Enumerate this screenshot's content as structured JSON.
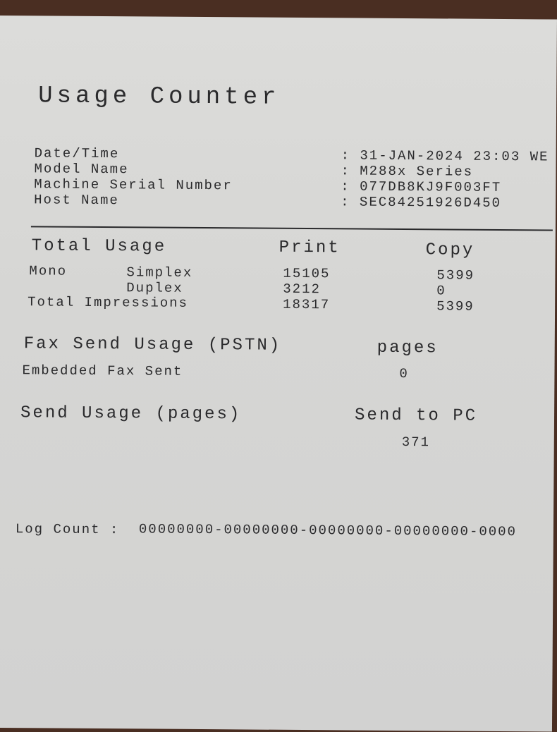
{
  "title": "Usage Counter",
  "info": [
    {
      "label": "Date/Time",
      "value": ": 31-JAN-2024 23:03 WE"
    },
    {
      "label": "Model Name",
      "value": ": M288x Series"
    },
    {
      "label": "Machine Serial Number",
      "value": ": 077DB8KJ9F003FT"
    },
    {
      "label": "Host Name",
      "value": ": SEC84251926D450"
    }
  ],
  "total_usage": {
    "heading": "Total Usage",
    "col_print": "Print",
    "col_copy": "Copy",
    "mono": "Mono",
    "rows": [
      {
        "label": "Simplex",
        "print": "15105",
        "copy": "5399"
      },
      {
        "label": "Duplex",
        "print": "3212",
        "copy": "0"
      },
      {
        "label": "Total Impressions",
        "print": "18317",
        "copy": "5399"
      }
    ]
  },
  "fax": {
    "heading": "Fax Send Usage (PSTN)",
    "col": "pages",
    "row_label": "Embedded Fax Sent",
    "value": "0"
  },
  "send": {
    "heading": "Send Usage (pages)",
    "col": "Send to PC",
    "value": "371"
  },
  "log": {
    "label": "Log Count :",
    "value": "00000000-00000000-00000000-00000000-0000"
  }
}
